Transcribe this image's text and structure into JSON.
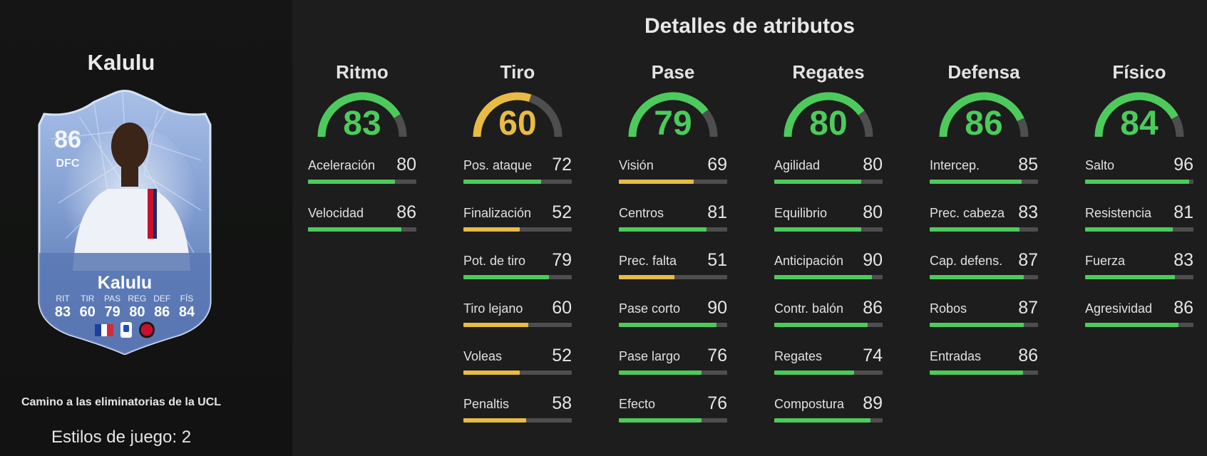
{
  "colors": {
    "green": "#4ccb5c",
    "yellow": "#e8bb44",
    "track": "#4d4e4d",
    "card_blue": "#7f9cd0"
  },
  "player": {
    "name": "Kalulu",
    "card": {
      "overall": "86",
      "position": "DFC",
      "name": "Kalulu",
      "stats": [
        {
          "label": "RIT",
          "value": "83"
        },
        {
          "label": "TIR",
          "value": "60"
        },
        {
          "label": "PAS",
          "value": "79"
        },
        {
          "label": "REG",
          "value": "80"
        },
        {
          "label": "DEF",
          "value": "86"
        },
        {
          "label": "FÍS",
          "value": "84"
        }
      ],
      "nation_icon": "france-flag-icon",
      "league_icon": "serie-a-icon",
      "club_icon": "ac-milan-badge-icon"
    },
    "promo": "Camino a las eliminatorias de la UCL",
    "playstyles": "Estilos de juego: 2"
  },
  "heading": "Detalles de atributos",
  "categories": [
    {
      "title": "Ritmo",
      "value": 83,
      "stats": [
        {
          "name": "Aceleración",
          "value": 80
        },
        {
          "name": "Velocidad",
          "value": 86
        }
      ]
    },
    {
      "title": "Tiro",
      "value": 60,
      "stats": [
        {
          "name": "Pos. ataque",
          "value": 72
        },
        {
          "name": "Finalización",
          "value": 52
        },
        {
          "name": "Pot. de tiro",
          "value": 79
        },
        {
          "name": "Tiro lejano",
          "value": 60
        },
        {
          "name": "Voleas",
          "value": 52
        },
        {
          "name": "Penaltis",
          "value": 58
        }
      ]
    },
    {
      "title": "Pase",
      "value": 79,
      "stats": [
        {
          "name": "Visión",
          "value": 69
        },
        {
          "name": "Centros",
          "value": 81
        },
        {
          "name": "Prec. falta",
          "value": 51
        },
        {
          "name": "Pase corto",
          "value": 90
        },
        {
          "name": "Pase largo",
          "value": 76
        },
        {
          "name": "Efecto",
          "value": 76
        }
      ]
    },
    {
      "title": "Regates",
      "value": 80,
      "stats": [
        {
          "name": "Agilidad",
          "value": 80
        },
        {
          "name": "Equilibrio",
          "value": 80
        },
        {
          "name": "Anticipación",
          "value": 90
        },
        {
          "name": "Contr. balón",
          "value": 86
        },
        {
          "name": "Regates",
          "value": 74
        },
        {
          "name": "Compostura",
          "value": 89
        }
      ]
    },
    {
      "title": "Defensa",
      "value": 86,
      "stats": [
        {
          "name": "Intercep.",
          "value": 85
        },
        {
          "name": "Prec. cabeza",
          "value": 83
        },
        {
          "name": "Cap. defens.",
          "value": 87
        },
        {
          "name": "Robos",
          "value": 87
        },
        {
          "name": "Entradas",
          "value": 86
        }
      ]
    },
    {
      "title": "Físico",
      "value": 84,
      "stats": [
        {
          "name": "Salto",
          "value": 96
        },
        {
          "name": "Resistencia",
          "value": 81
        },
        {
          "name": "Fuerza",
          "value": 83
        },
        {
          "name": "Agresividad",
          "value": 86
        }
      ]
    }
  ]
}
